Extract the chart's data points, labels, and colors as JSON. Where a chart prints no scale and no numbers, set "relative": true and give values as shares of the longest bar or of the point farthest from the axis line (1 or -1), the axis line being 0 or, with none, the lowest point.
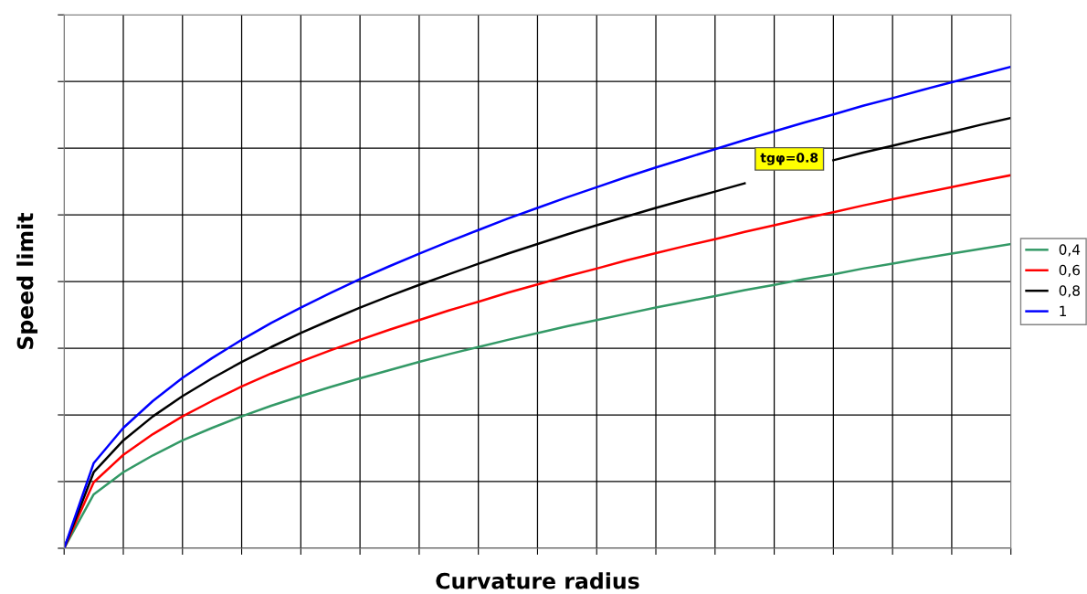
{
  "chart_data": {
    "type": "line",
    "xlabel": "Curvature radius",
    "ylabel": "Speed limit",
    "relative": true,
    "grid": true,
    "legend": "right",
    "marker": "none",
    "line_style": "solid",
    "categories": [
      null,
      null,
      null,
      null,
      null,
      null,
      null,
      null,
      null,
      null,
      null,
      null,
      null,
      null,
      null,
      null,
      null,
      null,
      null,
      null,
      null,
      null,
      null,
      null,
      null,
      null,
      null,
      null,
      null,
      null,
      null,
      null,
      null
    ],
    "annotations": [
      "tgφ=0.8"
    ],
    "series": [
      {
        "name": "0,4",
        "color": "#339966",
        "values": [
          0,
          0.112,
          0.158,
          0.193,
          0.224,
          0.25,
          0.274,
          0.296,
          0.316,
          0.335,
          0.353,
          0.37,
          0.387,
          0.403,
          0.418,
          0.433,
          0.447,
          0.461,
          0.474,
          0.487,
          0.5,
          0.512,
          0.524,
          0.536,
          0.547,
          0.559,
          0.569,
          0.581,
          0.591,
          0.602,
          0.612,
          0.622,
          0.632
        ]
      },
      {
        "name": "0,6",
        "color": "#ff0000",
        "values": [
          0,
          0.137,
          0.194,
          0.237,
          0.274,
          0.306,
          0.336,
          0.363,
          0.388,
          0.411,
          0.433,
          0.454,
          0.474,
          0.494,
          0.512,
          0.531,
          0.548,
          0.565,
          0.581,
          0.598,
          0.613,
          0.628,
          0.642,
          0.657,
          0.671,
          0.685,
          0.698,
          0.712,
          0.725,
          0.738,
          0.75,
          0.763,
          0.775
        ]
      },
      {
        "name": "0,8",
        "color": "#000000",
        "values": [
          0,
          0.158,
          0.224,
          0.274,
          0.316,
          0.353,
          0.387,
          0.418,
          0.447,
          0.474,
          0.5,
          0.524,
          0.547,
          0.569,
          0.591,
          0.612,
          0.632,
          0.652,
          0.671,
          0.689,
          0.707,
          0.724,
          0.741,
          0.758,
          null,
          null,
          0.806,
          0.822,
          0.836,
          0.851,
          0.865,
          0.88,
          0.894
        ]
      },
      {
        "name": "1",
        "color": "#0000ff",
        "values": [
          0,
          0.177,
          0.25,
          0.306,
          0.354,
          0.395,
          0.433,
          0.468,
          0.5,
          0.53,
          0.559,
          0.586,
          0.612,
          0.637,
          0.661,
          0.685,
          0.707,
          0.729,
          0.75,
          0.771,
          0.791,
          0.81,
          0.829,
          0.848,
          0.866,
          0.884,
          0.901,
          0.919,
          0.935,
          0.952,
          0.968,
          0.984,
          1
        ]
      }
    ]
  }
}
